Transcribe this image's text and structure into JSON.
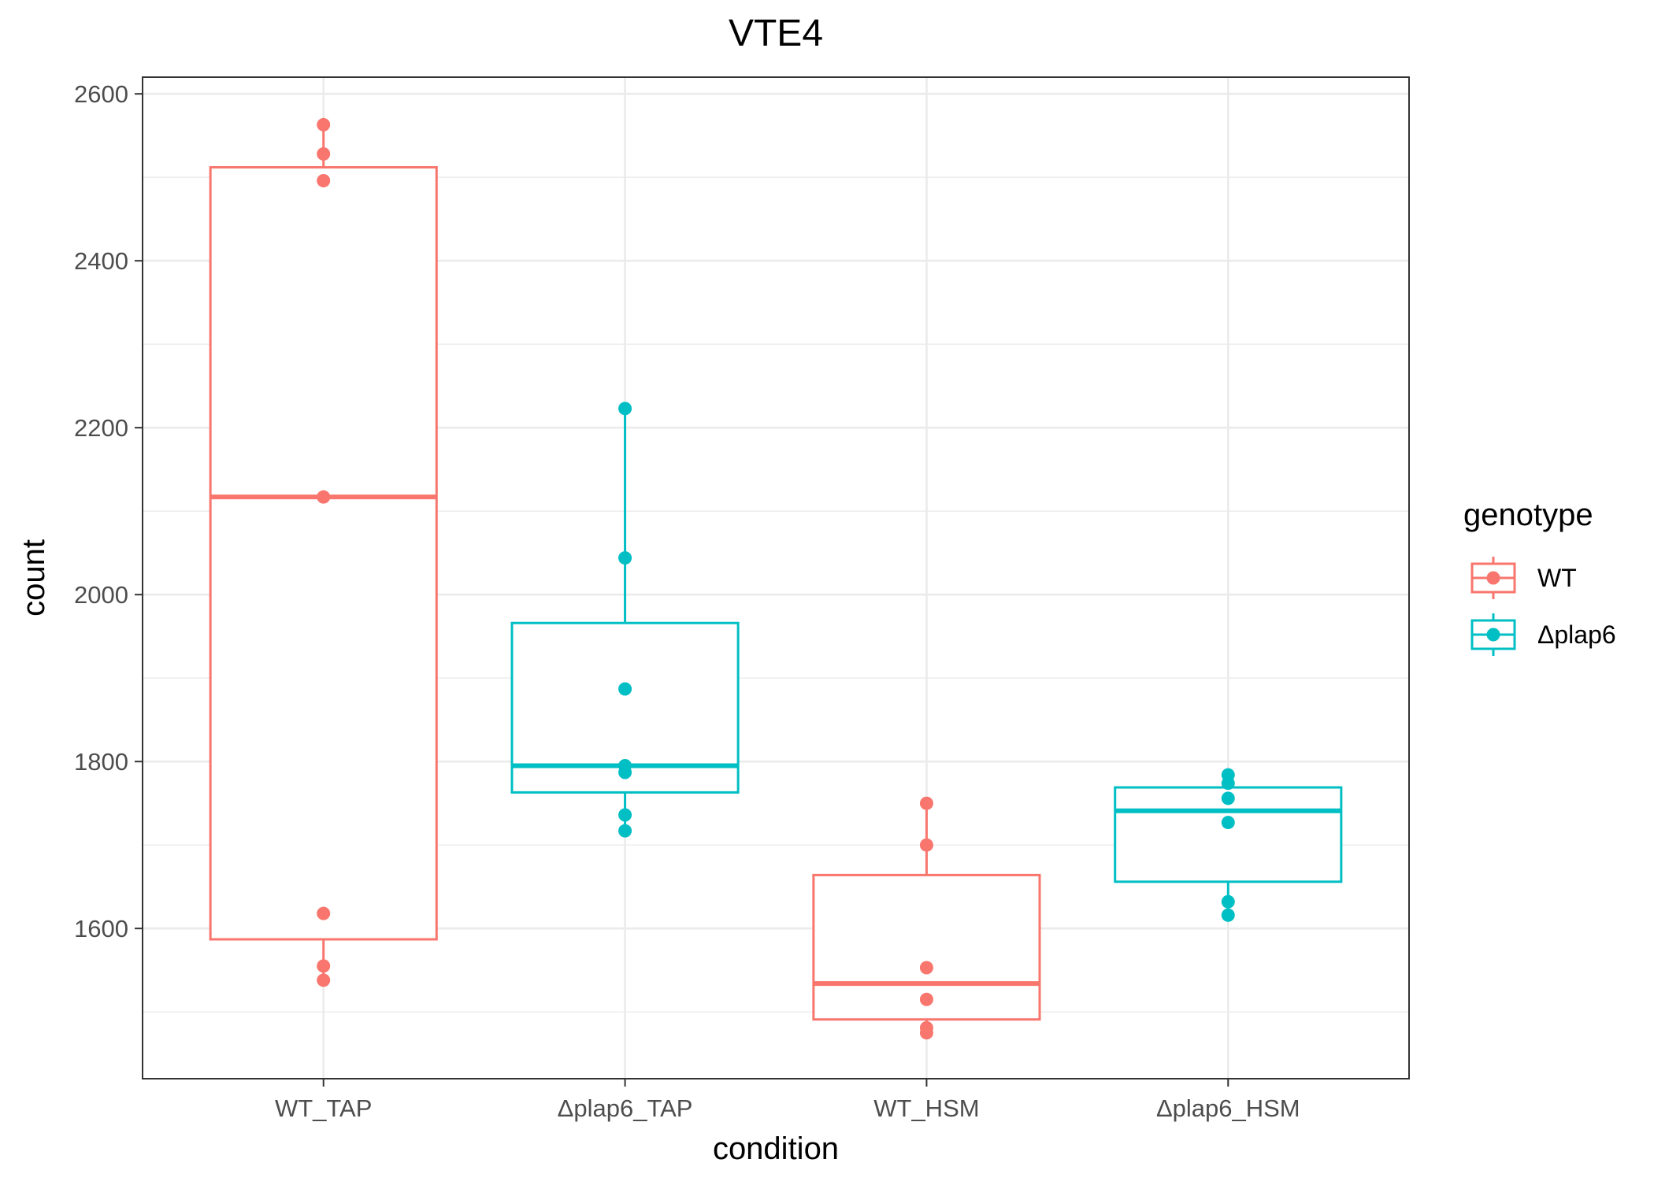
{
  "chart_data": {
    "type": "boxplot",
    "title": "VTE4",
    "xlabel": "condition",
    "ylabel": "count",
    "ylim": [
      1420,
      2620
    ],
    "y_ticks": [
      1600,
      1800,
      2000,
      2200,
      2400,
      2600
    ],
    "grid": true,
    "legend_position": "right",
    "legend_title": "genotype",
    "legend": [
      {
        "label": "WT",
        "color": "#F8766D"
      },
      {
        "label": "Δplap6",
        "color": "#00BFC4"
      }
    ],
    "categories": [
      "WT_TAP",
      "Δplap6_TAP",
      "WT_HSM",
      "Δplap6_HSM"
    ],
    "boxes": [
      {
        "category": "WT_TAP",
        "genotype": "WT",
        "whisker_low": 1538,
        "q1": 1587,
        "median": 2117,
        "q3": 2512,
        "whisker_high": 2563,
        "points": [
          2563,
          2528,
          2496,
          2117,
          1618,
          1555,
          1538
        ]
      },
      {
        "category": "Δplap6_TAP",
        "genotype": "Δplap6",
        "whisker_low": 1717,
        "q1": 1763,
        "median": 1795,
        "q3": 1966,
        "whisker_high": 2223,
        "points": [
          2223,
          2044,
          1887,
          1795,
          1787,
          1736,
          1717
        ]
      },
      {
        "category": "WT_HSM",
        "genotype": "WT",
        "whisker_low": 1475,
        "q1": 1491,
        "median": 1534,
        "q3": 1664,
        "whisker_high": 1750,
        "points": [
          1750,
          1700,
          1553,
          1515,
          1481,
          1475
        ]
      },
      {
        "category": "Δplap6_HSM",
        "genotype": "Δplap6",
        "whisker_low": 1616,
        "q1": 1656,
        "median": 1741,
        "q3": 1769,
        "whisker_high": 1784,
        "points": [
          1784,
          1774,
          1756,
          1727,
          1632,
          1616
        ]
      }
    ]
  }
}
